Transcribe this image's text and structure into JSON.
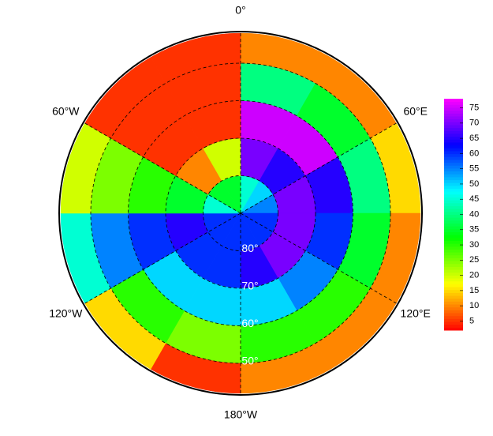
{
  "chart_data": {
    "type": "polar-heatmap",
    "lon_labels": [
      {
        "value": 0,
        "label": "0°"
      },
      {
        "value": 60,
        "label": "60°E"
      },
      {
        "value": 120,
        "label": "120°E"
      },
      {
        "value": 180,
        "label": "180°W"
      },
      {
        "value": -120,
        "label": "120°W"
      },
      {
        "value": -60,
        "label": "60°W"
      }
    ],
    "lat_labels": [
      {
        "value": 80,
        "label": "80°"
      },
      {
        "value": 70,
        "label": "70°"
      },
      {
        "value": 60,
        "label": "60°"
      },
      {
        "value": 50,
        "label": "50°"
      }
    ],
    "field": {
      "lon_bins": [
        0,
        30,
        60,
        90,
        120,
        150,
        180,
        210,
        240,
        270,
        300,
        330,
        360
      ],
      "lat_bins": [
        90,
        80,
        70,
        60,
        50,
        42
      ],
      "values": [
        [
          45,
          70,
          75,
          40,
          10
        ],
        [
          50,
          65,
          75,
          35,
          10
        ],
        [
          55,
          70,
          65,
          40,
          15
        ],
        [
          60,
          70,
          60,
          35,
          10
        ],
        [
          60,
          70,
          55,
          30,
          10
        ],
        [
          60,
          65,
          50,
          30,
          10
        ],
        [
          60,
          60,
          50,
          25,
          5
        ],
        [
          60,
          60,
          50,
          30,
          15
        ],
        [
          60,
          65,
          60,
          55,
          45
        ],
        [
          45,
          35,
          30,
          25,
          20
        ],
        [
          35,
          10,
          5,
          5,
          5
        ],
        [
          35,
          20,
          5,
          5,
          5
        ]
      ]
    },
    "clim": [
      2,
      78
    ],
    "cticks": [
      5,
      10,
      15,
      20,
      25,
      30,
      35,
      40,
      45,
      50,
      55,
      60,
      65,
      70,
      75
    ]
  }
}
